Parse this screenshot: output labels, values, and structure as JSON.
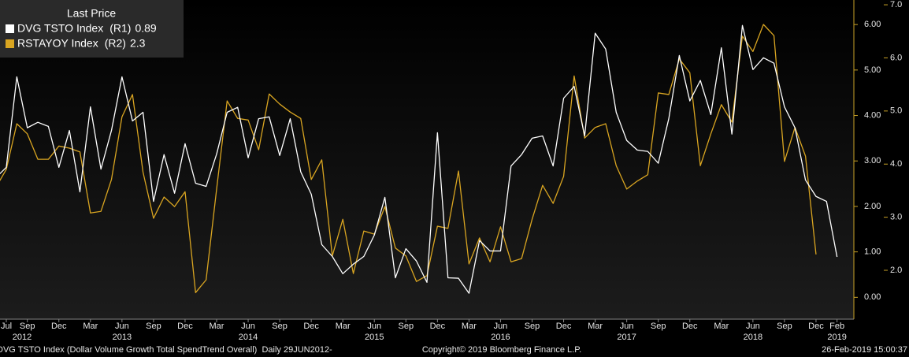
{
  "chart_data": {
    "type": "line",
    "legend_title": "Last Price",
    "categories": [
      null,
      "Jul",
      null,
      "Sep",
      null,
      null,
      "Dec",
      null,
      null,
      "Mar",
      null,
      null,
      "Jun",
      null,
      null,
      "Sep",
      null,
      null,
      "Dec",
      null,
      null,
      "Mar",
      null,
      null,
      "Jun",
      null,
      null,
      "Sep",
      null,
      null,
      "Dec",
      null,
      null,
      "Mar",
      null,
      null,
      "Jun",
      null,
      null,
      "Sep",
      null,
      null,
      "Dec",
      null,
      null,
      "Mar",
      null,
      null,
      "Jun",
      null,
      null,
      "Sep",
      null,
      null,
      "Dec",
      null,
      null,
      "Mar",
      null,
      null,
      "Jun",
      null,
      null,
      "Sep",
      null,
      null,
      "Dec",
      null,
      null,
      "Mar",
      null,
      null,
      "Jun",
      null,
      null,
      "Sep",
      null,
      null,
      "Dec",
      null,
      "Feb"
    ],
    "year_labels": [
      {
        "value": 2.5,
        "label": "2012"
      },
      {
        "value": 12,
        "label": "2013"
      },
      {
        "value": 24,
        "label": "2014"
      },
      {
        "value": 36,
        "label": "2015"
      },
      {
        "value": 48,
        "label": "2016"
      },
      {
        "value": 60,
        "label": "2017"
      },
      {
        "value": 72,
        "label": "2018"
      },
      {
        "value": 80,
        "label": "2019"
      }
    ],
    "series": [
      {
        "name": "DVG TSTO Index",
        "legend_tag": "(R1)",
        "color": "#ffffff",
        "axis": "y",
        "values": [
          2.63,
          2.86,
          4.85,
          3.73,
          3.85,
          3.76,
          2.86,
          3.67,
          2.32,
          4.19,
          2.82,
          3.67,
          4.85,
          3.88,
          4.07,
          2.11,
          3.14,
          2.29,
          3.38,
          2.51,
          2.44,
          3.15,
          4.07,
          4.18,
          3.07,
          3.93,
          3.97,
          3.12,
          3.93,
          2.76,
          2.27,
          1.16,
          0.9,
          0.52,
          0.73,
          0.9,
          1.37,
          2.2,
          0.43,
          1.07,
          0.8,
          0.33,
          3.62,
          0.43,
          0.42,
          0.09,
          1.25,
          1.02,
          1.02,
          2.89,
          3.14,
          3.5,
          3.55,
          2.89,
          4.38,
          4.64,
          3.55,
          5.81,
          5.46,
          4.07,
          3.45,
          3.24,
          3.21,
          2.95,
          3.93,
          5.32,
          4.32,
          4.77,
          4.02,
          5.49,
          3.59,
          5.98,
          5.01,
          5.27,
          5.15,
          4.19,
          3.73,
          2.58,
          2.22,
          2.11,
          0.89
        ]
      },
      {
        "name": "RSTAYOY Index",
        "legend_tag": "(R2)",
        "color": "#d9a521",
        "axis": "y2",
        "values": [
          3.56,
          3.9,
          4.76,
          4.57,
          4.09,
          4.09,
          4.34,
          4.3,
          4.23,
          3.08,
          3.11,
          3.71,
          4.89,
          5.31,
          3.85,
          2.98,
          3.38,
          3.2,
          3.48,
          1.58,
          1.82,
          3.53,
          5.19,
          4.86,
          4.83,
          4.27,
          5.32,
          5.13,
          4.98,
          4.86,
          3.71,
          4.08,
          2.27,
          2.96,
          1.94,
          2.74,
          2.68,
          3.2,
          2.42,
          2.27,
          1.79,
          1.9,
          2.83,
          2.79,
          3.87,
          2.12,
          2.61,
          2.16,
          2.82,
          2.16,
          2.22,
          2.96,
          3.6,
          3.26,
          3.77,
          5.66,
          4.49,
          4.69,
          4.76,
          3.97,
          3.53,
          3.68,
          3.8,
          5.34,
          5.31,
          5.98,
          5.72,
          3.97,
          4.57,
          5.12,
          4.79,
          6.41,
          6.12,
          6.63,
          6.42,
          4.05,
          4.69,
          4.15,
          2.3,
          null,
          null
        ]
      }
    ],
    "ylim": [
      -0.48,
      6.54
    ],
    "yticks": [
      {
        "value": 0,
        "label": "0.00"
      },
      {
        "value": 1,
        "label": "1.00"
      },
      {
        "value": 2,
        "label": "2.00"
      },
      {
        "value": 3,
        "label": "3.00"
      },
      {
        "value": 4,
        "label": "4.00"
      },
      {
        "value": 5,
        "label": "5.00"
      },
      {
        "value": 6,
        "label": "6.00"
      }
    ],
    "y2lim": [
      1.08,
      7.09
    ],
    "y2ticks": [
      {
        "value": 2,
        "label": "2.0"
      },
      {
        "value": 3,
        "label": "3.0"
      },
      {
        "value": 4,
        "label": "4.0"
      },
      {
        "value": 5,
        "label": "5.0"
      },
      {
        "value": 6,
        "label": "6.0"
      },
      {
        "value": 7,
        "label": "7.0"
      }
    ],
    "footer_left": "DVG TSTO Index (Dollar Volume Growth Total SpendTrend Overall)  Daily 29JUN2012-",
    "footer_center": "Copyright© 2019 Bloomberg Finance L.P.",
    "footer_right": "26-Feb-2019 15:00:37"
  }
}
